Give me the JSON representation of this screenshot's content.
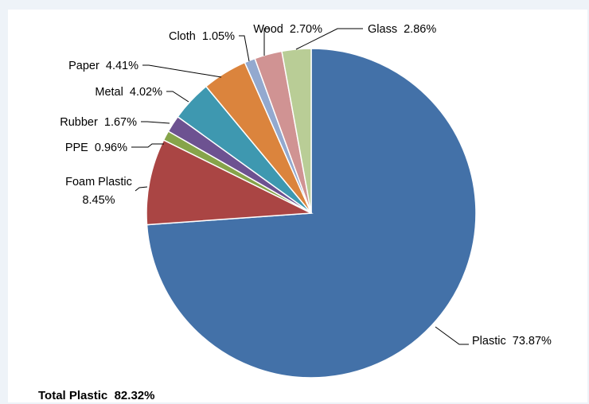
{
  "chart_data": {
    "type": "pie",
    "title": "",
    "slices": [
      {
        "label": "Plastic",
        "value": 73.87,
        "display": "73.87%",
        "color": "#4371a8"
      },
      {
        "label": "Foam Plastic",
        "value": 8.45,
        "display": "8.45%",
        "color": "#aa4544"
      },
      {
        "label": "PPE",
        "value": 0.96,
        "display": "0.96%",
        "color": "#86a44a"
      },
      {
        "label": "Rubber",
        "value": 1.67,
        "display": "1.67%",
        "color": "#6d5291"
      },
      {
        "label": "Metal",
        "value": 4.02,
        "display": "4.02%",
        "color": "#3e98b0"
      },
      {
        "label": "Paper",
        "value": 4.41,
        "display": "4.41%",
        "color": "#db843d"
      },
      {
        "label": "Cloth",
        "value": 1.05,
        "display": "1.05%",
        "color": "#93a9cf"
      },
      {
        "label": "Wood",
        "value": 2.7,
        "display": "2.70%",
        "color": "#d09393"
      },
      {
        "label": "Glass",
        "value": 2.86,
        "display": "2.86%",
        "color": "#b9cd96"
      }
    ],
    "legend": "none",
    "data_labels": "outside with leader lines"
  },
  "annotation": {
    "total_label": "Total Plastic",
    "total_value": "82.32%"
  }
}
